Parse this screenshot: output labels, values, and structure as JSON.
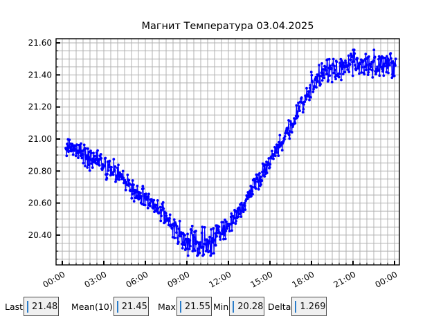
{
  "chart_data": {
    "type": "scatter",
    "title": "Магнит Температура 03.04.2025",
    "grid": true,
    "x_axis": {
      "tick_hours": [
        0,
        3,
        6,
        9,
        12,
        15,
        18,
        21,
        24
      ],
      "tick_labels": [
        "00:00",
        "03:00",
        "06:00",
        "09:00",
        "12:00",
        "15:00",
        "18:00",
        "21:00",
        "00:00"
      ],
      "minor_step_hours": 0.5,
      "lim_hours": [
        -0.45,
        24.35
      ],
      "label_rotation_deg": 30
    },
    "y_axis": {
      "tick_values": [
        21.6,
        21.4,
        21.2,
        21.0,
        20.8,
        20.6,
        20.4
      ],
      "tick_labels": [
        "21.60",
        "21.40",
        "21.20",
        "21.00",
        "20.80",
        "20.60",
        "20.40"
      ],
      "minor_step": 0.05,
      "lim": [
        20.214,
        21.626
      ]
    },
    "series": [
      {
        "name": "магнит-температура",
        "color": "#0000ff",
        "marker": "circle",
        "t_start_hours": 0.25,
        "t_end_hours": 24.1,
        "sample_interval_hours": 0.033333,
        "hourly_profile": {
          "hours": [
            0,
            1,
            2,
            3,
            4,
            5,
            6,
            7,
            8,
            9,
            10,
            11,
            12,
            13,
            14,
            15,
            16,
            17,
            18,
            19,
            20,
            21,
            22,
            23,
            24
          ],
          "mean": [
            20.98,
            20.93,
            20.88,
            20.84,
            20.78,
            20.69,
            20.64,
            20.56,
            20.45,
            20.37,
            20.34,
            20.38,
            20.46,
            20.58,
            20.72,
            20.86,
            21.01,
            21.16,
            21.35,
            21.42,
            21.45,
            21.47,
            21.48,
            21.47,
            21.45
          ],
          "noise_amp": [
            0.05,
            0.05,
            0.055,
            0.06,
            0.05,
            0.05,
            0.05,
            0.05,
            0.06,
            0.075,
            0.08,
            0.07,
            0.05,
            0.045,
            0.045,
            0.045,
            0.05,
            0.05,
            0.06,
            0.065,
            0.07,
            0.07,
            0.07,
            0.065,
            0.06
          ]
        },
        "observed_min": 20.28,
        "observed_max": 21.55
      }
    ]
  },
  "status_bar": {
    "fields": [
      {
        "label": "Last",
        "value": "21.48"
      },
      {
        "label": "Mean(10)",
        "value": "21.45"
      },
      {
        "label": "Max",
        "value": "21.55"
      },
      {
        "label": "Min",
        "value": "20.28"
      },
      {
        "label": "Delta",
        "value": "1.269"
      }
    ]
  },
  "colors": {
    "data_blue": "#0000ff",
    "grid_gray": "#b0b0b0",
    "frame_black": "#000000",
    "entry_bg": "#f0f0f0",
    "entry_border": "#4a4a4a",
    "cursor_blue": "#2a7cc9"
  }
}
